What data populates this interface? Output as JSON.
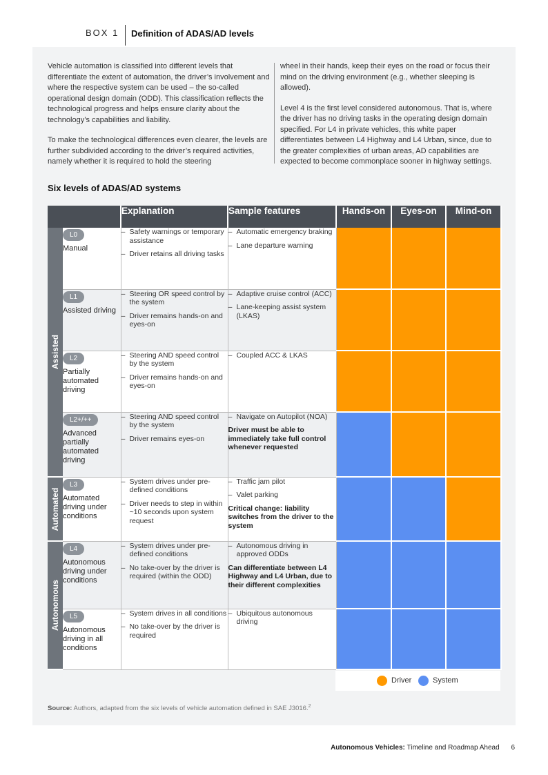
{
  "box": {
    "label": "BOX 1",
    "title": "Definition of ADAS/AD levels"
  },
  "intro": {
    "left": [
      "Vehicle automation is classified into different levels that differentiate the extent of automation, the driver’s involvement and where the respective system can be used – the so-called operational design domain (ODD). This classification reflects the technological progress and helps ensure clarity about the technology’s capabilities and liability.",
      "To make the technological differences even clearer, the levels are further subdivided according to the driver’s required activities, namely whether it is required to hold the steering"
    ],
    "right": [
      "wheel in their hands, keep their eyes on the road or focus their mind on the driving environment (e.g., whether sleeping is allowed).",
      "Level 4 is the first level considered autonomous. That is, where the driver has no driving tasks in the operating design domain specified. For L4 in private vehicles, this white paper differentiates between L4 Highway and L4 Urban, since, due to the greater complexities of urban areas, AD capabilities are expected to become commonplace sooner in highway settings."
    ]
  },
  "table": {
    "title": "Six levels of ADAS/AD systems",
    "headers": {
      "explanation": "Explanation",
      "features": "Sample features",
      "hands": "Hands-on",
      "eyes": "Eyes-on",
      "mind": "Mind-on"
    },
    "groups": {
      "assisted": "Assisted",
      "automated": "Automated",
      "autonomous": "Autonomous"
    },
    "colors": {
      "driver": "#ff9900",
      "system": "#5b8ff2"
    },
    "rows": [
      {
        "code": "L0",
        "name": "Manual",
        "exp": [
          "Safety warnings or temporary assistance",
          "Driver retains all driving tasks"
        ],
        "feat": [
          "Automatic emergency braking",
          "Lane departure warning"
        ],
        "note": ""
      },
      {
        "code": "L1",
        "name": "Assisted driving",
        "exp": [
          "Steering OR speed control by the system",
          "Driver remains hands-on and eyes-on"
        ],
        "feat": [
          "Adaptive cruise control (ACC)",
          "Lane-keeping assist system (LKAS)"
        ],
        "note": ""
      },
      {
        "code": "L2",
        "name": "Partially automated driving",
        "exp": [
          "Steering AND speed control by the system",
          "Driver remains hands-on and eyes-on"
        ],
        "feat": [
          "Coupled ACC & LKAS"
        ],
        "note": ""
      },
      {
        "code": "L2+/++",
        "name": "Advanced partially automated driving",
        "exp": [
          "Steering AND speed control by the system",
          "Driver remains eyes-on"
        ],
        "feat": [
          "Navigate on Autopilot (NOA)"
        ],
        "note": "Driver must be able to immediately take full control whenever requested"
      },
      {
        "code": "L3",
        "name": "Automated driving under conditions",
        "exp": [
          "System drives under pre-defined conditions",
          "Driver needs to step in within ~10 seconds upon system request"
        ],
        "feat": [
          "Traffic jam pilot",
          "Valet parking"
        ],
        "note": "Critical change: liability switches from the driver to the system"
      },
      {
        "code": "L4",
        "name": "Autonomous driving under conditions",
        "exp": [
          "System drives under pre-defined conditions",
          "No take-over by the driver is required (within the ODD)"
        ],
        "feat": [
          "Autonomous driving in approved ODDs"
        ],
        "note": "Can differentiate between L4 Highway and L4 Urban, due to their different complexities"
      },
      {
        "code": "L5",
        "name": "Autonomous driving in all conditions",
        "exp": [
          "System drives in all conditions",
          "No take-over by the driver is required"
        ],
        "feat": [
          "Ubiquitous autonomous driving"
        ],
        "note": ""
      }
    ],
    "legend": {
      "driver": "Driver",
      "system": "System"
    }
  },
  "source": {
    "label": "Source:",
    "text": "Authors, adapted from the six levels of vehicle automation defined in SAE J3016.",
    "footnote": "2"
  },
  "footer": {
    "title": "Autonomous Vehicles:",
    "subtitle": "Timeline and Roadmap Ahead",
    "page": "6"
  }
}
